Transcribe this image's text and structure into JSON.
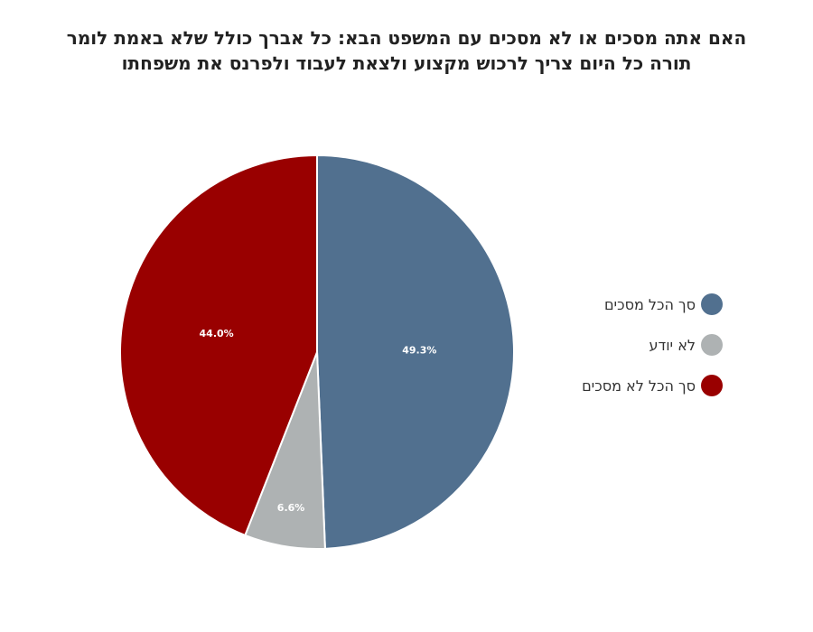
{
  "chart_data": {
    "type": "pie",
    "title_lines": [
      "האם אתה מסכים או לא מסכים עם המשפט הבא: כל אברך כולל שלא באמת לומר",
      "תורה כל היום צריך לרכוש מקצוע ולצאת לעבוד ולפרנס את משפחתו"
    ],
    "slices": [
      {
        "label": "סך הכל מסכים",
        "value": 49.3,
        "display": "49.3%",
        "color": "#51708f"
      },
      {
        "label": "לא יודע",
        "value": 6.6,
        "display": "6.6%",
        "color": "#aeb2b3"
      },
      {
        "label": "סך הכל לא מסכים",
        "value": 44.0,
        "display": "44.0%",
        "color": "#990000"
      }
    ],
    "legend_position": "right"
  }
}
